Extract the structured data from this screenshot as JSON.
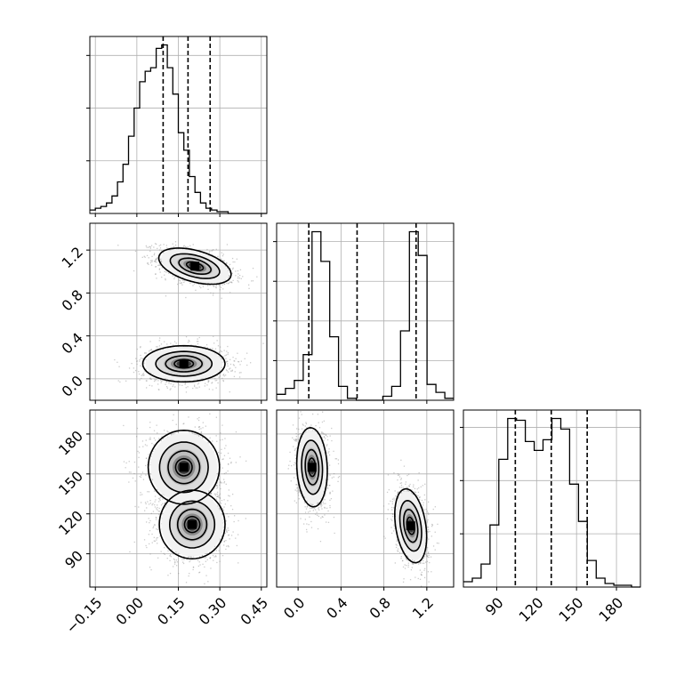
{
  "chart_data": {
    "type": "corner",
    "grid": true,
    "parameters": [
      {
        "range": [
          -0.17,
          0.47
        ],
        "ticks": [
          -0.15,
          0.0,
          0.15,
          0.3,
          0.45
        ],
        "tick_labels": [
          "−0.15",
          "0.00",
          "0.15",
          "0.30",
          "0.45"
        ],
        "quantiles": [
          0.095,
          0.185,
          0.265
        ],
        "hist_edges_start": -0.17,
        "hist_bin_width": 0.02,
        "hist_counts": [
          2,
          3,
          4,
          6,
          10,
          18,
          28,
          44,
          60,
          75,
          81,
          83,
          94,
          96,
          83,
          68,
          46,
          36,
          21,
          12,
          6,
          3,
          2,
          1,
          1,
          0,
          0,
          0,
          0,
          0,
          0,
          0
        ]
      },
      {
        "range": [
          -0.2,
          1.45
        ],
        "ticks": [
          0.0,
          0.4,
          0.8,
          1.2
        ],
        "tick_labels": [
          "0.0",
          "0.4",
          "0.8",
          "1.2"
        ],
        "quantiles": [
          0.1,
          0.55,
          1.1
        ],
        "hist_edges_start": -0.2,
        "hist_bin_width": 0.0825,
        "hist_counts": [
          3,
          6,
          10,
          23,
          85,
          70,
          32,
          7,
          1,
          0,
          0,
          0,
          2,
          7,
          35,
          85,
          73,
          8,
          4,
          1
        ]
      },
      {
        "range": [
          65,
          198
        ],
        "ticks": [
          90,
          120,
          150,
          180
        ],
        "tick_labels": [
          "90",
          "120",
          "150",
          "180"
        ],
        "quantiles": [
          104,
          131,
          158
        ],
        "hist_edges_start": 65,
        "hist_bin_width": 6.65,
        "hist_counts": [
          3,
          5,
          13,
          35,
          72,
          95,
          94,
          82,
          77,
          83,
          95,
          89,
          58,
          37,
          15,
          5,
          2,
          1,
          1,
          0
        ]
      }
    ],
    "pairs": [
      {
        "row": 1,
        "col": 0,
        "modes": [
          {
            "cx": 0.21,
            "cy": 1.05,
            "sx": 0.066,
            "sy": 0.085,
            "rho": -0.45,
            "weight": 1.0
          },
          {
            "cx": 0.17,
            "cy": 0.14,
            "sx": 0.075,
            "sy": 0.085,
            "rho": 0.0,
            "weight": 1.0
          }
        ]
      },
      {
        "row": 2,
        "col": 0,
        "modes": [
          {
            "cx": 0.2,
            "cy": 112,
            "sx": 0.06,
            "sy": 13,
            "rho": 0.0,
            "weight": 1.0
          },
          {
            "cx": 0.17,
            "cy": 155,
            "sx": 0.065,
            "sy": 14,
            "rho": 0.0,
            "weight": 1.0
          }
        ]
      },
      {
        "row": 2,
        "col": 1,
        "modes": [
          {
            "cx": 0.13,
            "cy": 155,
            "sx": 0.072,
            "sy": 15,
            "rho": -0.1,
            "weight": 1.0
          },
          {
            "cx": 1.05,
            "cy": 111,
            "sx": 0.075,
            "sy": 14,
            "rho": -0.3,
            "weight": 1.0
          }
        ]
      }
    ]
  }
}
